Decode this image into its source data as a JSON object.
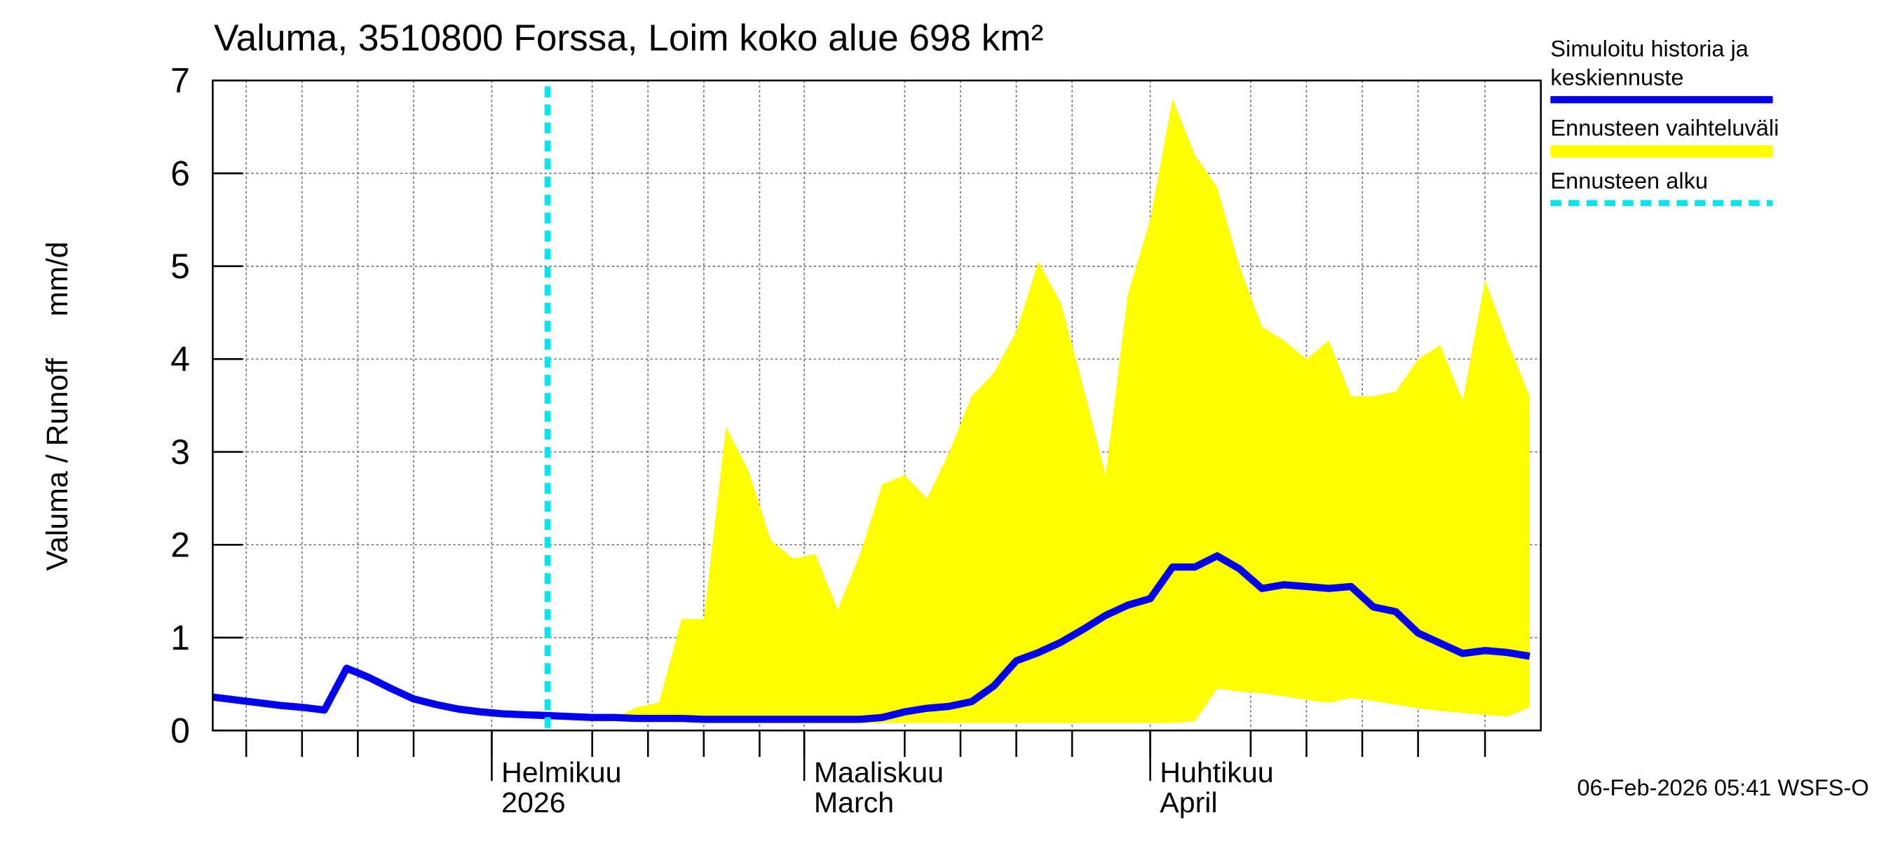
{
  "chart_data": {
    "type": "line",
    "title": "Valuma, 3510800 Forssa, Loim koko alue 698 km²",
    "ylabel": "Valuma / Runoff     mm/d",
    "footer": "06-Feb-2026 05:41 WSFS-O",
    "x": [
      "2026-01-07",
      "2026-01-09",
      "2026-01-11",
      "2026-01-13",
      "2026-01-15",
      "2026-01-17",
      "2026-01-19",
      "2026-01-21",
      "2026-01-23",
      "2026-01-25",
      "2026-01-27",
      "2026-01-29",
      "2026-01-31",
      "2026-02-02",
      "2026-02-04",
      "2026-02-06",
      "2026-02-08",
      "2026-02-10",
      "2026-02-12",
      "2026-02-14",
      "2026-02-16",
      "2026-02-18",
      "2026-02-20",
      "2026-02-22",
      "2026-02-24",
      "2026-02-26",
      "2026-02-28",
      "2026-03-02",
      "2026-03-04",
      "2026-03-06",
      "2026-03-08",
      "2026-03-10",
      "2026-03-12",
      "2026-03-14",
      "2026-03-16",
      "2026-03-18",
      "2026-03-20",
      "2026-03-22",
      "2026-03-24",
      "2026-03-26",
      "2026-03-28",
      "2026-03-30",
      "2026-04-01",
      "2026-04-03",
      "2026-04-05",
      "2026-04-07",
      "2026-04-09",
      "2026-04-11",
      "2026-04-13",
      "2026-04-15",
      "2026-04-17",
      "2026-04-19",
      "2026-04-21",
      "2026-04-23",
      "2026-04-25",
      "2026-04-27",
      "2026-04-29",
      "2026-05-01",
      "2026-05-03",
      "2026-05-05"
    ],
    "xlim": [
      "2026-01-07",
      "2026-05-06"
    ],
    "xticks": [
      {
        "value": "2026-02-01",
        "label": [
          "Helmikuu",
          "2026"
        ]
      },
      {
        "value": "2026-03-01",
        "label": [
          "Maaliskuu",
          "March"
        ]
      },
      {
        "value": "2026-04-01",
        "label": [
          "Huhtikuu",
          "April"
        ]
      }
    ],
    "xgrid": [
      "2026-01-10",
      "2026-01-15",
      "2026-01-20",
      "2026-01-25",
      "2026-02-01",
      "2026-02-10",
      "2026-02-15",
      "2026-02-20",
      "2026-02-25",
      "2026-03-01",
      "2026-03-10",
      "2026-03-15",
      "2026-03-20",
      "2026-03-25",
      "2026-04-01",
      "2026-04-10",
      "2026-04-15",
      "2026-04-20",
      "2026-04-25",
      "2026-05-01"
    ],
    "ylim": [
      0,
      7
    ],
    "yticks": [
      0,
      1,
      2,
      3,
      4,
      5,
      6,
      7
    ],
    "grid": true,
    "forecast_start": "2026-02-06",
    "forecast_start_name": "Ennusteen alku",
    "forecast_start_color": "#00e5ee",
    "band": {
      "name": "Ennusteen vaihteluväli",
      "color": "#ffff00",
      "upper": [
        null,
        null,
        null,
        null,
        null,
        null,
        null,
        null,
        null,
        null,
        null,
        null,
        null,
        null,
        null,
        0.16,
        0.15,
        0.14,
        0.14,
        0.25,
        0.3,
        1.2,
        1.2,
        3.27,
        2.8,
        2.05,
        1.85,
        1.9,
        1.3,
        1.9,
        2.65,
        2.75,
        2.5,
        3.0,
        3.6,
        3.85,
        4.3,
        5.05,
        4.6,
        3.7,
        2.75,
        4.7,
        5.5,
        6.8,
        6.2,
        5.85,
        5.0,
        4.35,
        4.2,
        4.0,
        4.2,
        3.6,
        3.6,
        3.65,
        4.0,
        4.15,
        3.55,
        4.85,
        4.2,
        3.6
      ],
      "lower": [
        null,
        null,
        null,
        null,
        null,
        null,
        null,
        null,
        null,
        null,
        null,
        null,
        null,
        null,
        null,
        0.16,
        0.15,
        0.14,
        0.14,
        0.13,
        0.12,
        0.11,
        0.1,
        0.09,
        0.09,
        0.08,
        0.08,
        0.08,
        0.08,
        0.08,
        0.08,
        0.08,
        0.08,
        0.08,
        0.08,
        0.08,
        0.08,
        0.08,
        0.08,
        0.08,
        0.08,
        0.08,
        0.08,
        0.08,
        0.1,
        0.45,
        0.42,
        0.4,
        0.37,
        0.33,
        0.3,
        0.35,
        0.32,
        0.28,
        0.24,
        0.21,
        0.19,
        0.17,
        0.15,
        0.25
      ]
    },
    "series": [
      {
        "name": "Simuloitu historia ja keskiennuste",
        "color": "#0000ee",
        "values": [
          0.36,
          0.33,
          0.3,
          0.27,
          0.25,
          0.22,
          0.67,
          0.57,
          0.45,
          0.34,
          0.28,
          0.23,
          0.2,
          0.18,
          0.17,
          0.16,
          0.15,
          0.14,
          0.14,
          0.13,
          0.13,
          0.13,
          0.12,
          0.12,
          0.12,
          0.12,
          0.12,
          0.12,
          0.12,
          0.12,
          0.14,
          0.2,
          0.24,
          0.26,
          0.31,
          0.48,
          0.75,
          0.84,
          0.95,
          1.09,
          1.24,
          1.35,
          1.42,
          1.76,
          1.76,
          1.88,
          1.74,
          1.53,
          1.57,
          1.55,
          1.53,
          1.55,
          1.33,
          1.28,
          1.05,
          0.94,
          0.83,
          0.86,
          0.84,
          0.8
        ]
      }
    ]
  }
}
